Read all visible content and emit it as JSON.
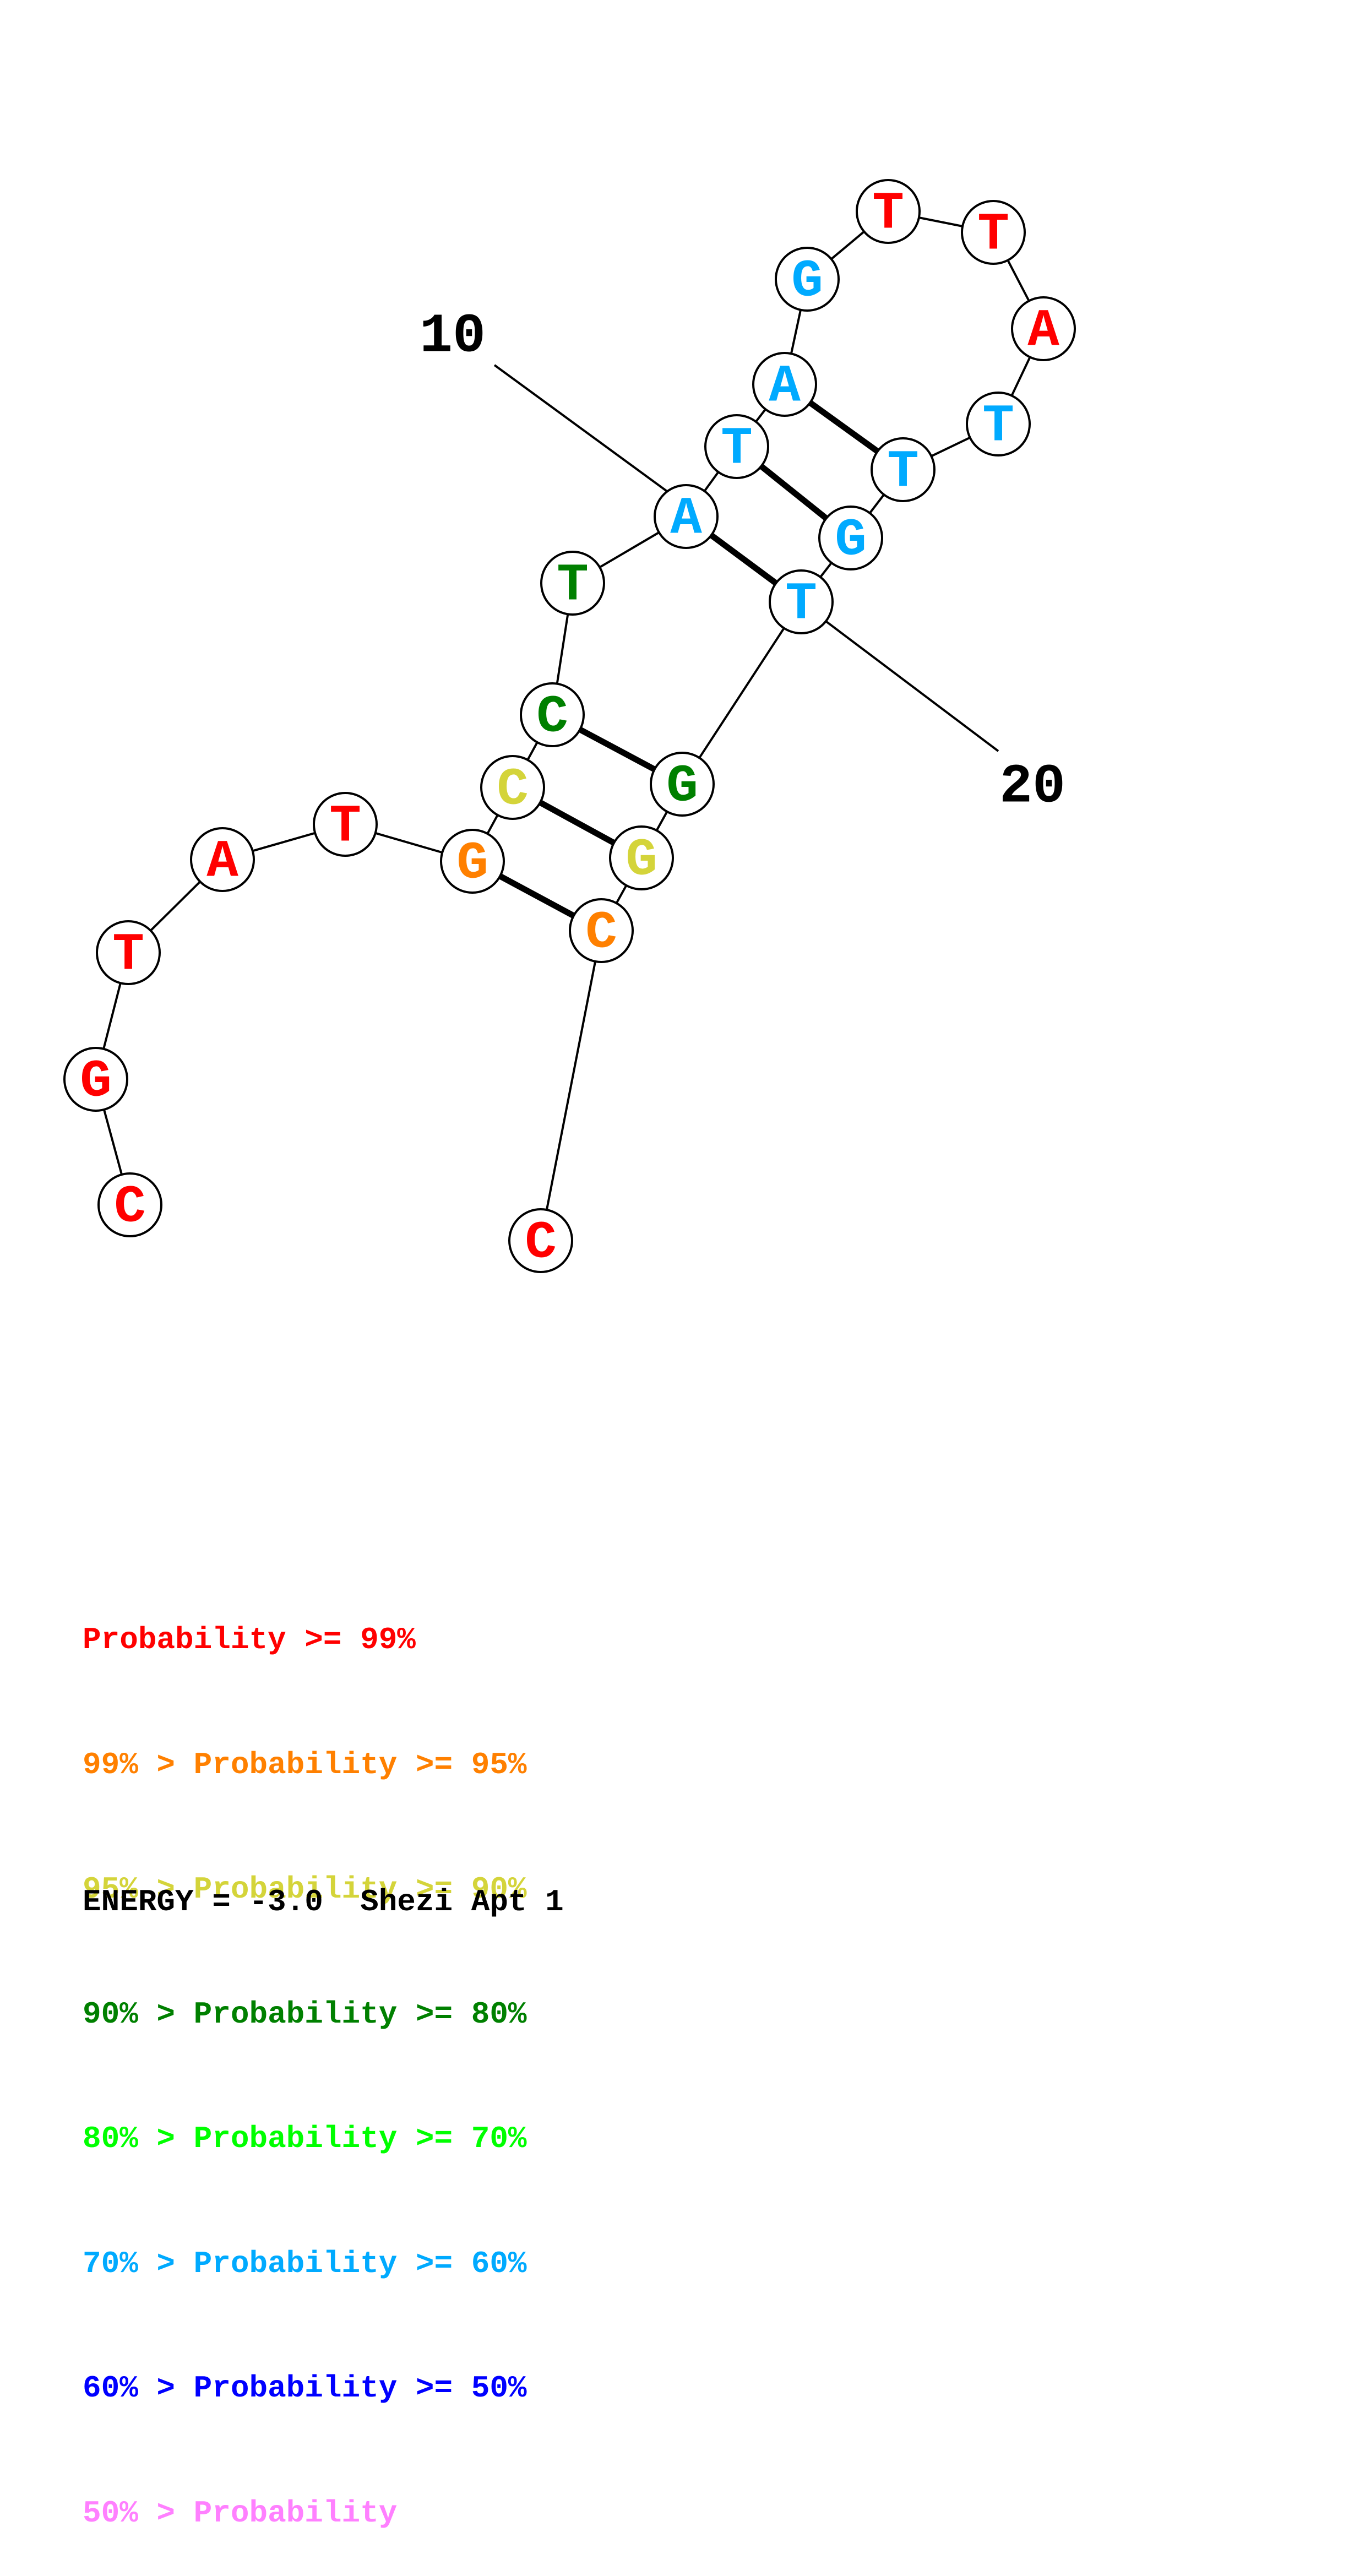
{
  "colors": {
    "p99": "#ff0000",
    "p95": "#ff8000",
    "p90": "#d4d43a",
    "p80": "#008000",
    "p70": "#00ff00",
    "p60": "#00aaff",
    "p50": "#0000ff",
    "p0": "#ff80ff"
  },
  "bases": [
    {
      "n": 1,
      "letter": "C",
      "color": "p99"
    },
    {
      "n": 2,
      "letter": "G",
      "color": "p99"
    },
    {
      "n": 3,
      "letter": "T",
      "color": "p99"
    },
    {
      "n": 4,
      "letter": "A",
      "color": "p99"
    },
    {
      "n": 5,
      "letter": "T",
      "color": "p99"
    },
    {
      "n": 6,
      "letter": "G",
      "color": "p95"
    },
    {
      "n": 7,
      "letter": "C",
      "color": "p90"
    },
    {
      "n": 8,
      "letter": "C",
      "color": "p80"
    },
    {
      "n": 9,
      "letter": "T",
      "color": "p80"
    },
    {
      "n": 10,
      "letter": "A",
      "color": "p60"
    },
    {
      "n": 11,
      "letter": "T",
      "color": "p60"
    },
    {
      "n": 12,
      "letter": "A",
      "color": "p60"
    },
    {
      "n": 13,
      "letter": "G",
      "color": "p60"
    },
    {
      "n": 14,
      "letter": "T",
      "color": "p99"
    },
    {
      "n": 15,
      "letter": "T",
      "color": "p99"
    },
    {
      "n": 16,
      "letter": "A",
      "color": "p99"
    },
    {
      "n": 17,
      "letter": "T",
      "color": "p60"
    },
    {
      "n": 18,
      "letter": "T",
      "color": "p60"
    },
    {
      "n": 19,
      "letter": "G",
      "color": "p60"
    },
    {
      "n": 20,
      "letter": "T",
      "color": "p60"
    },
    {
      "n": 21,
      "letter": "G",
      "color": "p80"
    },
    {
      "n": 22,
      "letter": "G",
      "color": "p90"
    },
    {
      "n": 23,
      "letter": "C",
      "color": "p95"
    },
    {
      "n": 24,
      "letter": "C",
      "color": "p99"
    }
  ],
  "pairs": [
    [
      6,
      23
    ],
    [
      7,
      22
    ],
    [
      8,
      21
    ],
    [
      10,
      20
    ],
    [
      11,
      19
    ],
    [
      12,
      18
    ]
  ],
  "number_labels": [
    {
      "text": "10",
      "base": 10
    },
    {
      "text": "20",
      "base": 20
    }
  ],
  "legend": [
    {
      "prefix": "",
      "text": "Probability >= 99%",
      "color": "p99"
    },
    {
      "prefix": "99% > ",
      "text": "Probability >= 95%",
      "color": "p95"
    },
    {
      "prefix": "95% > ",
      "text": "Probability >= 90%",
      "color": "p90"
    },
    {
      "prefix": "90% > ",
      "text": "Probability >= 80%",
      "color": "p80"
    },
    {
      "prefix": "80% > ",
      "text": "Probability >= 70%",
      "color": "p70"
    },
    {
      "prefix": "70% > ",
      "text": "Probability >= 60%",
      "color": "p60"
    },
    {
      "prefix": "60% > ",
      "text": "Probability >= 50%",
      "color": "p50"
    },
    {
      "prefix": "50% > ",
      "text": "Probability",
      "color": "p0"
    }
  ],
  "energy": "ENERGY = -3.0  Shezi Apt 1"
}
